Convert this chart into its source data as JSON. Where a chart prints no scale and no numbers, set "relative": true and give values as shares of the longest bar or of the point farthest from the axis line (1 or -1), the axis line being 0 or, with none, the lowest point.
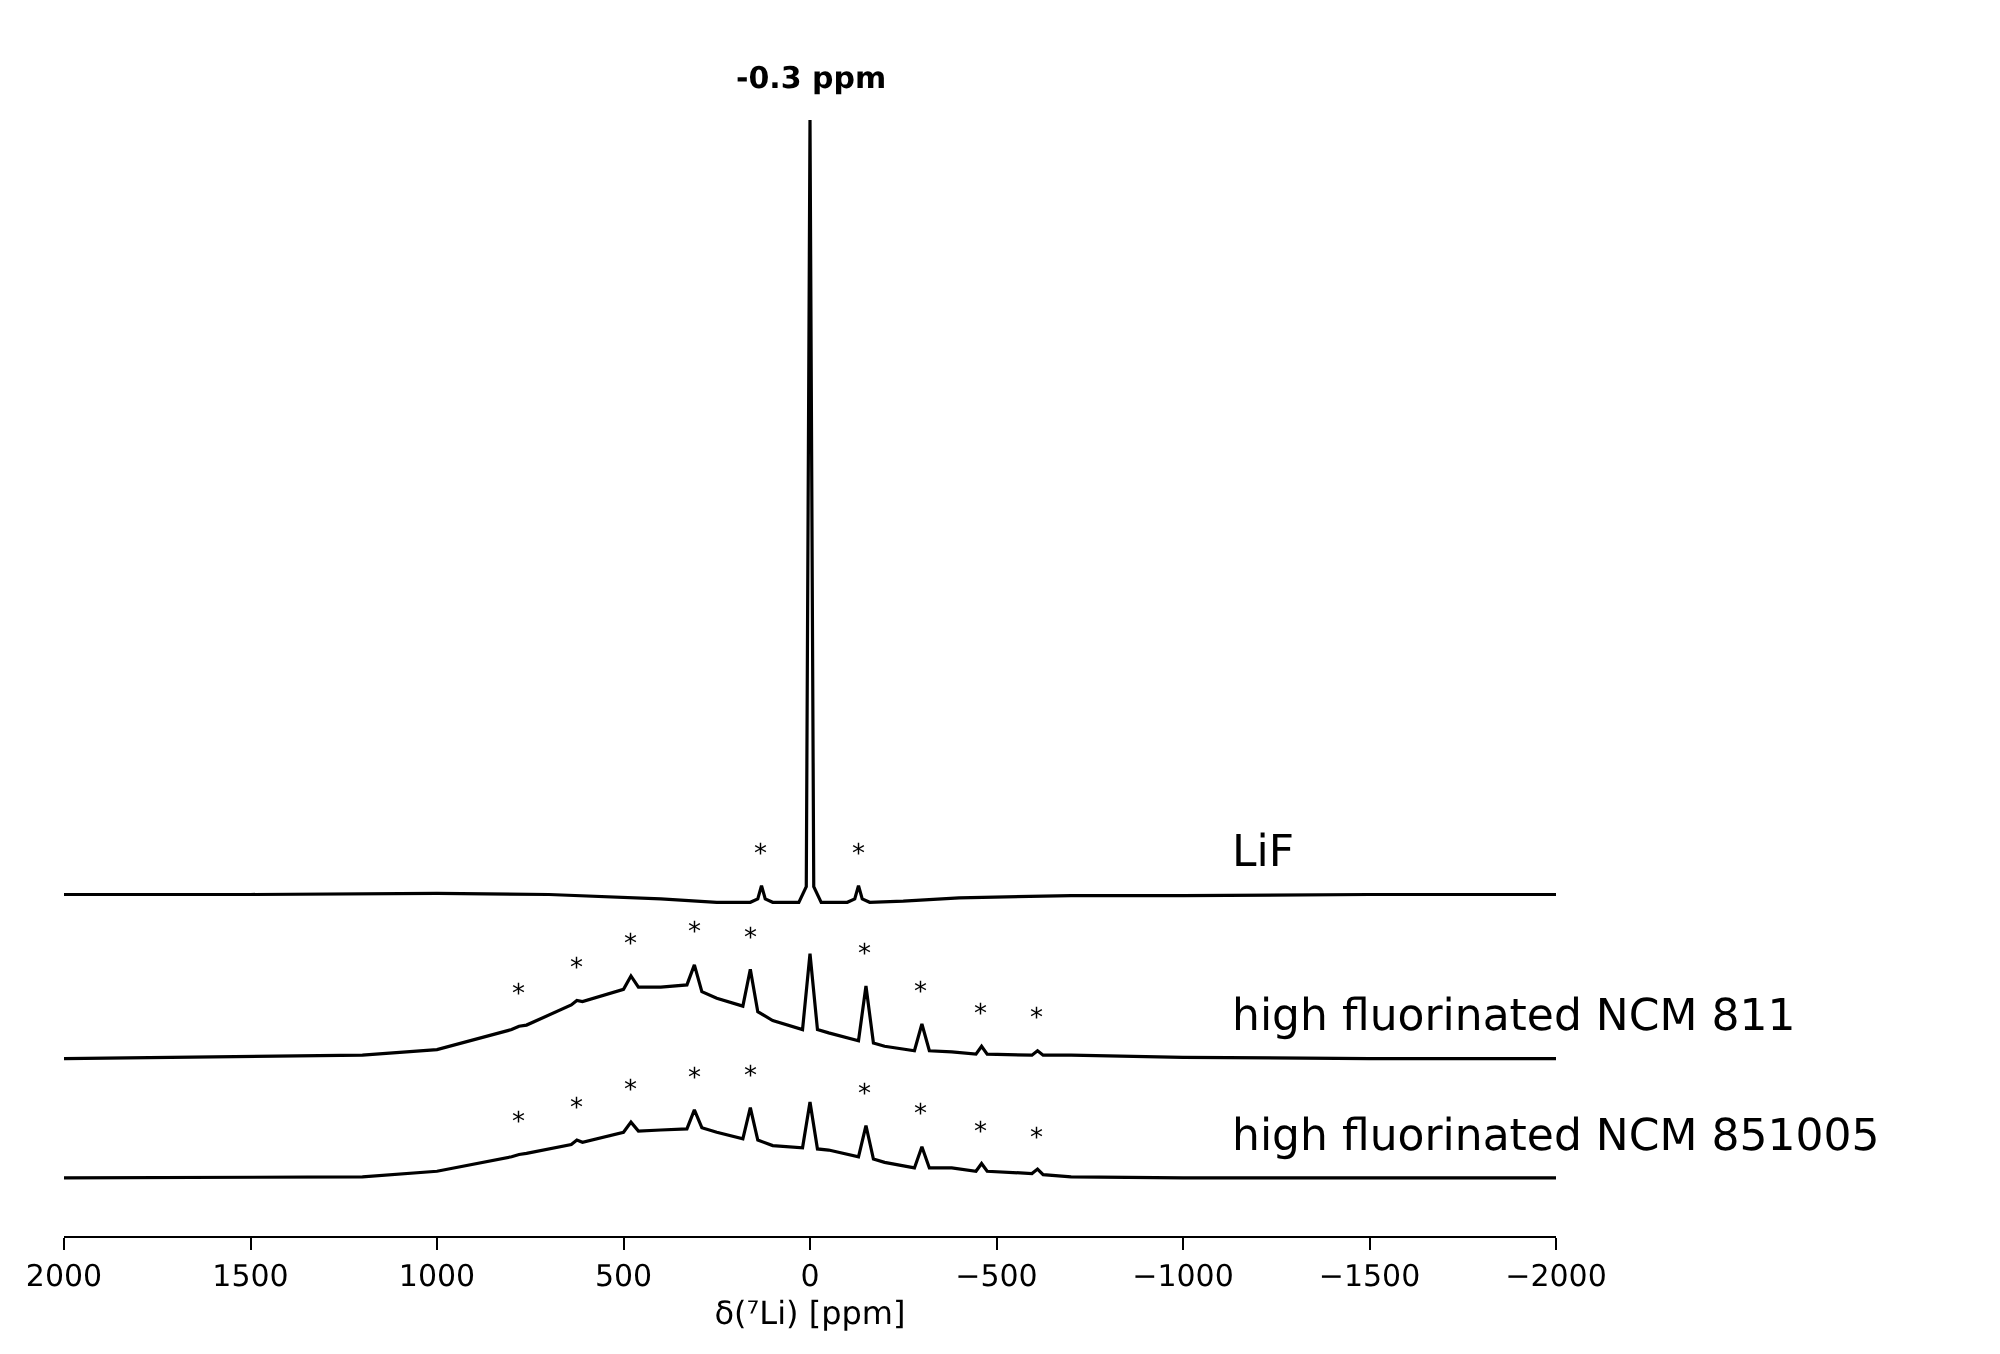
{
  "chart_data": {
    "type": "line",
    "relative": true,
    "xlabel": "δ(⁷Li) [ppm]",
    "xlim": [
      2000,
      -2000
    ],
    "xticks": [
      2000,
      1500,
      1000,
      500,
      0,
      {
        "value": -500,
        "label": "−500"
      },
      {
        "value": -1000,
        "label": "−1000"
      },
      {
        "value": -1500,
        "label": "−1500"
      },
      {
        "value": -2000,
        "label": "−2000"
      }
    ],
    "legend": false,
    "marker": "none",
    "line_style": "solid",
    "series": [
      {
        "name": "LiF",
        "color": "#000000",
        "x": [
          2000,
          1500,
          1000,
          700,
          400,
          250,
          160,
          140,
          130,
          120,
          100,
          30,
          10,
          0,
          -10,
          -30,
          -100,
          -120,
          -130,
          -140,
          -160,
          -250,
          -400,
          -700,
          -1000,
          -1500,
          -2000
        ],
        "values": [
          0.306,
          0.306,
          0.307,
          0.306,
          0.302,
          0.299,
          0.299,
          0.302,
          0.314,
          0.302,
          0.299,
          0.299,
          0.313,
          1,
          0.313,
          0.299,
          0.299,
          0.302,
          0.314,
          0.302,
          0.299,
          0.3,
          0.303,
          0.305,
          0.305,
          0.306,
          0.306
        ]
      },
      {
        "name": "high fluorinated NCM 811",
        "color": "#000000",
        "x": [
          2000,
          1200,
          1000,
          800,
          780,
          760,
          640,
          625,
          610,
          500,
          480,
          460,
          400,
          330,
          310,
          290,
          250,
          180,
          160,
          140,
          100,
          20,
          0,
          -20,
          -50,
          -130,
          -150,
          -170,
          -200,
          -280,
          -300,
          -320,
          -380,
          -445,
          -460,
          -475,
          -595,
          -610,
          -625,
          -700,
          -1000,
          -1500,
          -2000
        ],
        "values": [
          0.159,
          0.162,
          0.167,
          0.185,
          0.188,
          0.189,
          0.207,
          0.211,
          0.21,
          0.221,
          0.233,
          0.223,
          0.223,
          0.225,
          0.243,
          0.219,
          0.213,
          0.206,
          0.239,
          0.201,
          0.193,
          0.185,
          0.253,
          0.185,
          0.182,
          0.175,
          0.224,
          0.173,
          0.17,
          0.166,
          0.19,
          0.166,
          0.165,
          0.163,
          0.17,
          0.163,
          0.162,
          0.166,
          0.162,
          0.162,
          0.16,
          0.159,
          0.159
        ]
      },
      {
        "name": "high fluorinated NCM 851005",
        "color": "#000000",
        "x": [
          2000,
          1200,
          1000,
          800,
          780,
          760,
          640,
          625,
          610,
          500,
          480,
          460,
          400,
          330,
          310,
          290,
          250,
          180,
          160,
          140,
          100,
          20,
          0,
          -20,
          -50,
          -130,
          -150,
          -170,
          -200,
          -280,
          -300,
          -320,
          -380,
          -445,
          -460,
          -475,
          -595,
          -610,
          -625,
          -700,
          -1000,
          -1500,
          -2000
        ],
        "values": [
          0.052,
          0.053,
          0.058,
          0.071,
          0.073,
          0.074,
          0.082,
          0.086,
          0.084,
          0.093,
          0.102,
          0.094,
          0.095,
          0.096,
          0.113,
          0.097,
          0.093,
          0.087,
          0.115,
          0.086,
          0.081,
          0.079,
          0.12,
          0.078,
          0.077,
          0.071,
          0.099,
          0.069,
          0.066,
          0.061,
          0.08,
          0.061,
          0.061,
          0.058,
          0.065,
          0.058,
          0.056,
          0.06,
          0.055,
          0.053,
          0.052,
          0.052,
          0.052
        ]
      }
    ],
    "annotations": [
      {
        "text": "-0.3 ppm",
        "x": -0.3,
        "y": 1
      },
      {
        "text": "*",
        "x": 130,
        "y": 0.314
      },
      {
        "text": "*",
        "x": -130,
        "y": 0.314
      },
      {
        "text": "*",
        "x": 780,
        "y": 0.188
      },
      {
        "text": "*",
        "x": 625,
        "y": 0.211
      },
      {
        "text": "*",
        "x": 480,
        "y": 0.233
      },
      {
        "text": "*",
        "x": 310,
        "y": 0.243
      },
      {
        "text": "*",
        "x": 160,
        "y": 0.239
      },
      {
        "text": "*",
        "x": -150,
        "y": 0.224
      },
      {
        "text": "*",
        "x": -300,
        "y": 0.19
      },
      {
        "text": "*",
        "x": -460,
        "y": 0.17
      },
      {
        "text": "*",
        "x": -610,
        "y": 0.166
      },
      {
        "text": "*",
        "x": 780,
        "y": 0.073
      },
      {
        "text": "*",
        "x": 625,
        "y": 0.086
      },
      {
        "text": "*",
        "x": 480,
        "y": 0.102
      },
      {
        "text": "*",
        "x": 310,
        "y": 0.113
      },
      {
        "text": "*",
        "x": 160,
        "y": 0.115
      },
      {
        "text": "*",
        "x": -150,
        "y": 0.099
      },
      {
        "text": "*",
        "x": -300,
        "y": 0.08
      },
      {
        "text": "*",
        "x": -460,
        "y": 0.065
      },
      {
        "text": "*",
        "x": -610,
        "y": 0.06
      }
    ]
  }
}
